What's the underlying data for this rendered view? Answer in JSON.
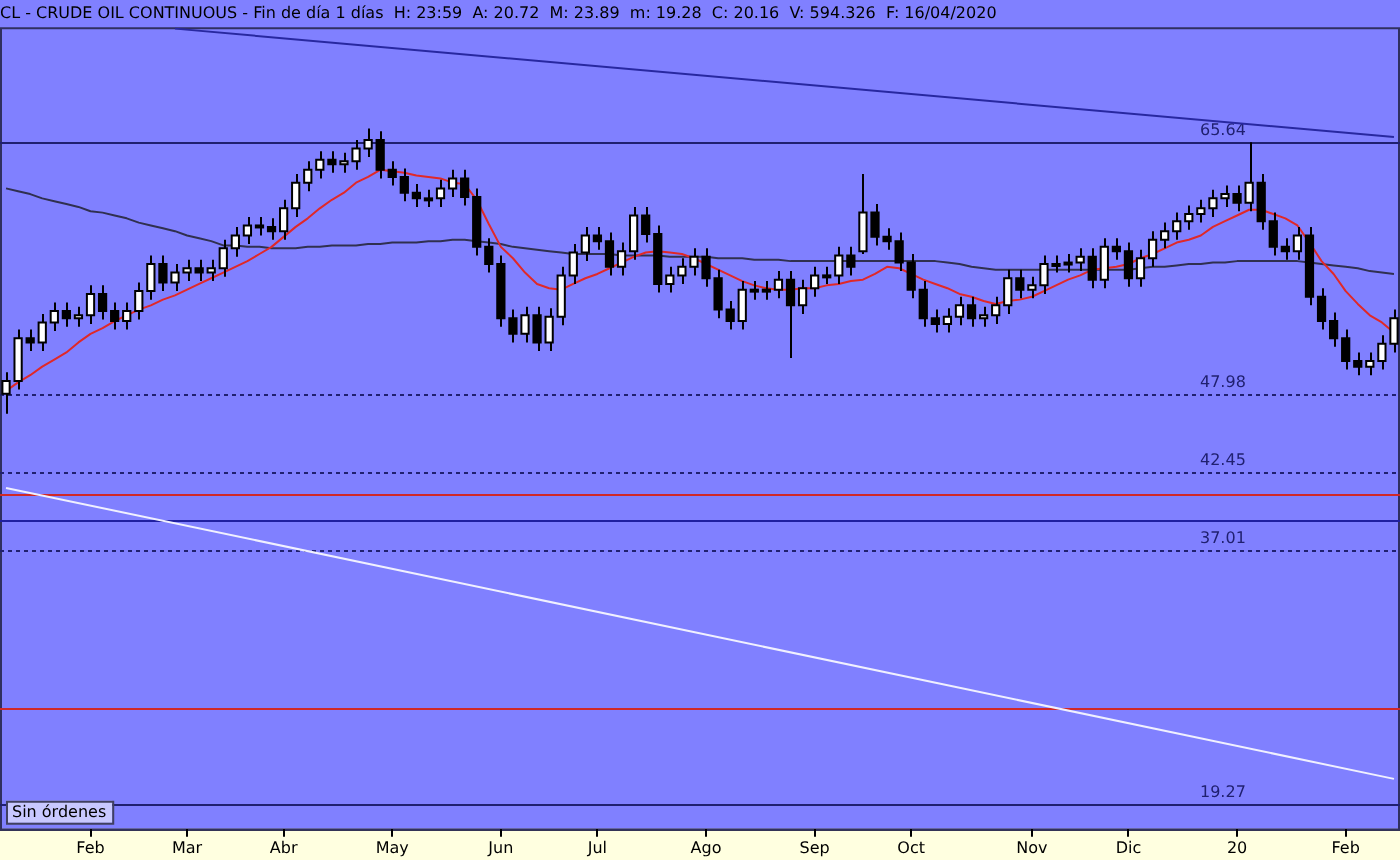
{
  "chart_data": {
    "type": "candlestick",
    "title": "CL - CRUDE OIL CONTINUOUS - Fin de día 1 días  H: 23:59  A: 20.72  M: 23.89  m: 19.28  C: 20.16  V: 594.326  F: 16/04/2020",
    "categories": [
      null,
      null,
      null,
      null,
      null,
      null,
      null,
      "Feb",
      null,
      null,
      null,
      null,
      null,
      null,
      null,
      "Mar",
      null,
      null,
      null,
      null,
      null,
      null,
      null,
      "Abr",
      null,
      null,
      null,
      null,
      null,
      null,
      null,
      null,
      "May",
      null,
      null,
      null,
      null,
      null,
      null,
      null,
      null,
      "Jun",
      null,
      null,
      null,
      null,
      null,
      null,
      null,
      "Jul",
      null,
      null,
      null,
      null,
      null,
      null,
      null,
      null,
      "Ago",
      null,
      null,
      null,
      null,
      null,
      null,
      null,
      null,
      "Sep",
      null,
      null,
      null,
      null,
      null,
      null,
      null,
      "Oct",
      null,
      null,
      null,
      null,
      null,
      null,
      null,
      null,
      null,
      "Nov",
      null,
      null,
      null,
      null,
      null,
      null,
      null,
      "Dic",
      null,
      null,
      null,
      null,
      null,
      null,
      null,
      null,
      "20",
      null,
      null,
      null,
      null,
      null,
      null,
      null,
      null,
      "Feb",
      null,
      null,
      null,
      null
    ],
    "ohlc": [
      [
        48.0,
        49.5,
        46.6,
        48.9
      ],
      [
        48.9,
        52.5,
        48.3,
        51.9
      ],
      [
        51.9,
        52.5,
        51.0,
        51.6
      ],
      [
        51.6,
        53.6,
        51.0,
        53.0
      ],
      [
        53.0,
        54.4,
        52.4,
        53.8
      ],
      [
        53.8,
        54.4,
        52.7,
        53.3
      ],
      [
        53.3,
        54.1,
        52.7,
        53.5
      ],
      [
        53.5,
        55.6,
        52.9,
        55.0
      ],
      [
        55.0,
        55.6,
        53.2,
        53.8
      ],
      [
        53.8,
        54.4,
        52.5,
        53.1
      ],
      [
        53.1,
        54.4,
        52.5,
        53.8
      ],
      [
        53.8,
        55.8,
        53.2,
        55.2
      ],
      [
        55.2,
        57.7,
        54.6,
        57.1
      ],
      [
        57.1,
        57.7,
        55.2,
        55.8
      ],
      [
        55.8,
        57.1,
        55.2,
        56.5
      ],
      [
        56.5,
        57.4,
        55.9,
        56.8
      ],
      [
        56.8,
        57.4,
        55.9,
        56.5
      ],
      [
        56.5,
        57.4,
        55.9,
        56.8
      ],
      [
        56.8,
        58.8,
        56.2,
        58.2
      ],
      [
        58.2,
        59.7,
        57.6,
        59.1
      ],
      [
        59.1,
        60.4,
        58.5,
        59.8
      ],
      [
        59.8,
        60.4,
        59.1,
        59.7
      ],
      [
        59.7,
        60.3,
        58.8,
        59.4
      ],
      [
        59.4,
        61.6,
        58.8,
        61.0
      ],
      [
        61.0,
        63.4,
        60.4,
        62.8
      ],
      [
        62.8,
        64.3,
        62.2,
        63.7
      ],
      [
        63.7,
        65.0,
        63.1,
        64.4
      ],
      [
        64.4,
        65.0,
        63.5,
        64.1
      ],
      [
        64.1,
        64.9,
        63.5,
        64.3
      ],
      [
        64.3,
        65.8,
        63.7,
        65.2
      ],
      [
        65.2,
        66.6,
        64.6,
        65.8
      ],
      [
        65.8,
        66.4,
        63.1,
        63.7
      ],
      [
        63.7,
        64.3,
        62.6,
        63.2
      ],
      [
        63.2,
        63.8,
        61.5,
        62.1
      ],
      [
        62.1,
        62.7,
        61.1,
        61.7
      ],
      [
        61.7,
        62.3,
        61.1,
        61.7
      ],
      [
        61.7,
        63.0,
        61.1,
        62.4
      ],
      [
        62.4,
        63.7,
        61.8,
        63.1
      ],
      [
        63.1,
        63.7,
        61.2,
        61.8
      ],
      [
        61.8,
        62.4,
        57.7,
        58.3
      ],
      [
        58.3,
        58.9,
        56.5,
        57.1
      ],
      [
        57.1,
        57.7,
        52.7,
        53.3
      ],
      [
        53.3,
        53.9,
        51.6,
        52.2
      ],
      [
        52.2,
        54.1,
        51.6,
        53.5
      ],
      [
        53.5,
        54.1,
        51.0,
        51.6
      ],
      [
        51.6,
        54.0,
        51.0,
        53.4
      ],
      [
        53.4,
        56.9,
        52.8,
        56.3
      ],
      [
        56.3,
        58.5,
        55.7,
        57.9
      ],
      [
        57.9,
        59.7,
        57.3,
        59.1
      ],
      [
        59.1,
        59.7,
        58.1,
        58.7
      ],
      [
        58.7,
        59.3,
        56.3,
        56.9
      ],
      [
        56.9,
        58.6,
        56.3,
        58.0
      ],
      [
        58.0,
        61.1,
        57.4,
        60.5
      ],
      [
        60.5,
        61.1,
        58.6,
        59.2
      ],
      [
        59.2,
        59.8,
        55.1,
        55.7
      ],
      [
        55.7,
        56.9,
        55.1,
        56.3
      ],
      [
        56.3,
        57.5,
        55.7,
        56.9
      ],
      [
        56.9,
        58.2,
        56.3,
        57.6
      ],
      [
        57.6,
        58.2,
        55.5,
        56.1
      ],
      [
        56.1,
        56.7,
        53.3,
        53.9
      ],
      [
        53.9,
        54.5,
        52.5,
        53.1
      ],
      [
        53.1,
        55.9,
        52.5,
        55.3
      ],
      [
        55.3,
        55.9,
        54.6,
        55.2
      ],
      [
        55.2,
        55.9,
        54.6,
        55.3
      ],
      [
        55.3,
        56.6,
        54.7,
        56.0
      ],
      [
        56.0,
        56.6,
        50.5,
        54.2
      ],
      [
        54.2,
        56.0,
        53.6,
        55.4
      ],
      [
        55.4,
        56.9,
        54.8,
        56.3
      ],
      [
        56.3,
        56.9,
        55.7,
        56.3
      ],
      [
        56.3,
        58.3,
        55.7,
        57.7
      ],
      [
        57.7,
        58.3,
        56.3,
        56.9
      ],
      [
        58.0,
        63.4,
        57.8,
        60.7
      ],
      [
        60.7,
        61.3,
        58.4,
        59.0
      ],
      [
        59.0,
        59.6,
        58.1,
        58.7
      ],
      [
        58.7,
        59.3,
        56.6,
        57.2
      ],
      [
        57.2,
        57.8,
        54.7,
        55.3
      ],
      [
        55.3,
        55.9,
        52.7,
        53.3
      ],
      [
        53.3,
        53.9,
        52.3,
        52.9
      ],
      [
        52.9,
        54.0,
        52.3,
        53.4
      ],
      [
        53.4,
        54.8,
        52.8,
        54.2
      ],
      [
        54.2,
        54.8,
        52.7,
        53.3
      ],
      [
        53.3,
        54.1,
        52.7,
        53.5
      ],
      [
        53.5,
        54.8,
        52.9,
        54.2
      ],
      [
        54.2,
        56.7,
        53.6,
        56.1
      ],
      [
        56.1,
        56.7,
        54.7,
        55.3
      ],
      [
        55.3,
        56.2,
        54.7,
        55.6
      ],
      [
        55.6,
        57.7,
        55.0,
        57.1
      ],
      [
        57.1,
        57.7,
        56.5,
        57.1
      ],
      [
        57.1,
        57.8,
        56.5,
        57.2
      ],
      [
        57.2,
        58.2,
        56.6,
        57.6
      ],
      [
        57.6,
        58.2,
        55.4,
        56.0
      ],
      [
        56.0,
        58.9,
        55.4,
        58.3
      ],
      [
        58.3,
        58.9,
        57.4,
        58.0
      ],
      [
        58.0,
        58.6,
        55.5,
        56.1
      ],
      [
        56.1,
        58.1,
        55.5,
        57.5
      ],
      [
        57.5,
        59.4,
        56.9,
        58.8
      ],
      [
        58.8,
        60.0,
        58.2,
        59.4
      ],
      [
        59.4,
        60.7,
        58.8,
        60.1
      ],
      [
        60.1,
        61.2,
        59.5,
        60.6
      ],
      [
        60.6,
        61.6,
        60.0,
        61.0
      ],
      [
        61.0,
        62.3,
        60.4,
        61.7
      ],
      [
        61.7,
        62.6,
        61.1,
        62.0
      ],
      [
        62.0,
        62.6,
        60.8,
        61.4
      ],
      [
        61.4,
        65.64,
        60.8,
        62.8
      ],
      [
        62.8,
        63.4,
        59.5,
        60.1
      ],
      [
        60.1,
        60.7,
        57.7,
        58.3
      ],
      [
        58.3,
        58.9,
        57.4,
        58.0
      ],
      [
        58.0,
        59.7,
        57.4,
        59.1
      ],
      [
        59.1,
        59.7,
        54.2,
        54.8
      ],
      [
        54.8,
        55.4,
        52.5,
        53.1
      ],
      [
        53.1,
        53.7,
        51.3,
        51.9
      ],
      [
        51.9,
        52.5,
        49.7,
        50.3
      ],
      [
        50.3,
        50.9,
        49.3,
        49.9
      ],
      [
        49.9,
        50.9,
        49.3,
        50.3
      ],
      [
        50.3,
        52.1,
        49.7,
        51.5
      ],
      [
        51.5,
        53.9,
        50.9,
        53.3
      ]
    ],
    "series": [
      {
        "type": "line",
        "color": "#e02828",
        "values": [
          48.2,
          48.8,
          49.3,
          49.9,
          50.4,
          50.9,
          51.6,
          52.2,
          52.6,
          53.1,
          53.5,
          53.9,
          54.2,
          54.6,
          54.9,
          55.3,
          55.7,
          56.1,
          56.5,
          56.9,
          57.3,
          57.8,
          58.3,
          59.0,
          59.7,
          60.3,
          61.0,
          61.6,
          62.1,
          62.8,
          63.2,
          63.7,
          63.6,
          63.5,
          63.3,
          63.2,
          63.1,
          62.8,
          62.7,
          61.6,
          59.9,
          58.3,
          57.5,
          56.5,
          55.7,
          55.4,
          55.3,
          55.7,
          56.1,
          56.4,
          56.8,
          57.2,
          57.6,
          57.9,
          58.0,
          57.9,
          57.8,
          57.5,
          57.1,
          56.7,
          56.3,
          55.9,
          55.6,
          55.4,
          55.3,
          55.3,
          55.4,
          55.4,
          55.6,
          55.7,
          55.9,
          56.0,
          56.4,
          56.9,
          56.8,
          56.4,
          56.0,
          55.7,
          55.4,
          55.0,
          54.8,
          54.5,
          54.3,
          54.5,
          54.6,
          54.8,
          55.2,
          55.6,
          56.0,
          56.3,
          56.7,
          56.8,
          56.9,
          57.1,
          57.5,
          57.8,
          58.2,
          58.6,
          58.8,
          59.1,
          59.7,
          60.1,
          60.5,
          60.9,
          60.9,
          60.6,
          60.3,
          59.8,
          58.6,
          57.3,
          56.4,
          55.2,
          54.3,
          53.5,
          53.0,
          52.3
        ]
      },
      {
        "type": "line",
        "color": "#303050",
        "values": [
          62.4,
          62.2,
          62.0,
          61.7,
          61.5,
          61.3,
          61.1,
          60.8,
          60.7,
          60.5,
          60.3,
          60.0,
          59.8,
          59.6,
          59.4,
          59.1,
          58.9,
          58.7,
          58.4,
          58.4,
          58.3,
          58.3,
          58.2,
          58.2,
          58.2,
          58.3,
          58.3,
          58.4,
          58.4,
          58.4,
          58.5,
          58.5,
          58.6,
          58.6,
          58.6,
          58.7,
          58.7,
          58.8,
          58.8,
          58.7,
          58.6,
          58.5,
          58.3,
          58.2,
          58.1,
          58.0,
          57.9,
          57.8,
          57.8,
          57.8,
          57.8,
          57.7,
          57.7,
          57.7,
          57.7,
          57.6,
          57.6,
          57.6,
          57.6,
          57.5,
          57.5,
          57.5,
          57.4,
          57.4,
          57.4,
          57.3,
          57.3,
          57.3,
          57.3,
          57.3,
          57.3,
          57.3,
          57.3,
          57.3,
          57.3,
          57.3,
          57.3,
          57.3,
          57.2,
          57.1,
          56.9,
          56.8,
          56.7,
          56.7,
          56.7,
          56.7,
          56.7,
          56.7,
          56.7,
          56.7,
          56.7,
          56.7,
          56.7,
          56.7,
          56.8,
          56.9,
          56.9,
          57.0,
          57.1,
          57.1,
          57.2,
          57.2,
          57.3,
          57.3,
          57.3,
          57.3,
          57.3,
          57.3,
          57.2,
          57.1,
          57.0,
          56.9,
          56.8,
          56.6,
          56.5,
          56.4
        ]
      },
      {
        "type": "line",
        "color": "#2828a0",
        "values": [
          null,
          null,
          null,
          null,
          null,
          null,
          null,
          null,
          null,
          null,
          null,
          null,
          null,
          null,
          73.6,
          null,
          null,
          null,
          null,
          null,
          null,
          null,
          null,
          null,
          null,
          null,
          null,
          null,
          null,
          null,
          null,
          null,
          null,
          null,
          null,
          null,
          null,
          null,
          null,
          null,
          null,
          null,
          null,
          null,
          null,
          null,
          null,
          null,
          null,
          null,
          null,
          null,
          null,
          null,
          null,
          null,
          null,
          null,
          null,
          null,
          null,
          null,
          null,
          null,
          null,
          null,
          null,
          null,
          null,
          null,
          null,
          null,
          null,
          null,
          null,
          null,
          null,
          null,
          null,
          null,
          null,
          null,
          null,
          null,
          null,
          null,
          null,
          null,
          null,
          null,
          null,
          null,
          null,
          null,
          null,
          null,
          null,
          null,
          null,
          null,
          null,
          null,
          null,
          null,
          null,
          null,
          null,
          null,
          null,
          null,
          null,
          null,
          null,
          null,
          null,
          66.0
        ]
      },
      {
        "type": "line",
        "color": "#f0f0ff",
        "values": [
          41.4,
          null,
          null,
          null,
          null,
          null,
          null,
          null,
          null,
          null,
          null,
          null,
          null,
          null,
          null,
          null,
          null,
          null,
          null,
          null,
          null,
          null,
          null,
          null,
          null,
          null,
          null,
          null,
          null,
          null,
          null,
          null,
          null,
          null,
          null,
          null,
          null,
          null,
          null,
          null,
          null,
          null,
          null,
          null,
          null,
          null,
          null,
          null,
          null,
          null,
          null,
          null,
          null,
          null,
          null,
          null,
          null,
          null,
          null,
          null,
          null,
          null,
          null,
          null,
          null,
          null,
          null,
          null,
          null,
          null,
          null,
          null,
          null,
          null,
          null,
          null,
          null,
          null,
          null,
          null,
          null,
          null,
          null,
          null,
          null,
          null,
          null,
          null,
          null,
          null,
          null,
          null,
          null,
          null,
          null,
          null,
          null,
          null,
          null,
          null,
          null,
          null,
          null,
          null,
          null,
          null,
          null,
          null,
          null,
          null,
          null,
          null,
          null,
          null,
          null,
          21.0
        ]
      }
    ],
    "ylim": [
      17.5,
      73.7
    ],
    "tick_labels": "x",
    "ref_lines": [
      {
        "axis": "y",
        "value": 65.64,
        "label": "65.64",
        "color": "#202070",
        "line_style": "solid"
      },
      {
        "axis": "y",
        "value": 47.98,
        "label": "47.98",
        "color": "#202070",
        "line_style": "dotted"
      },
      {
        "axis": "y",
        "value": 42.45,
        "label": "42.45",
        "color": "#202070",
        "line_style": "dotted"
      },
      {
        "axis": "y",
        "value": 37.01,
        "label": "37.01",
        "color": "#202070",
        "line_style": "dotted"
      },
      {
        "axis": "y",
        "value": 19.27,
        "label": "19.27",
        "color": "#202070",
        "line_style": "solid"
      },
      {
        "axis": "y",
        "value": 41.0,
        "color": "#d02828",
        "line_style": "solid"
      },
      {
        "axis": "y",
        "value": 39.1,
        "color": "#2020a0",
        "line_style": "solid"
      },
      {
        "axis": "y",
        "value": 25.9,
        "color": "#d02828",
        "line_style": "solid"
      }
    ],
    "annotations": [
      "Sin órdenes"
    ]
  }
}
